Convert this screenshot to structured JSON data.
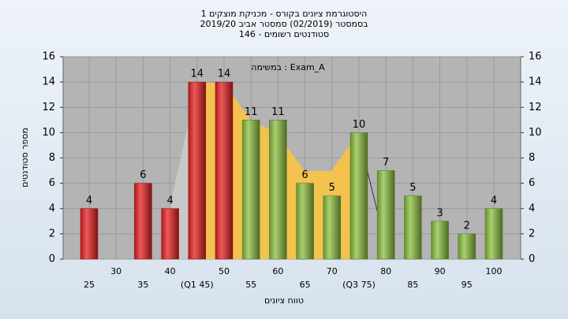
{
  "chart_data": {
    "type": "bar",
    "title_lines": [
      "היסטוגרמת ציונים בקורס - מכניקת מוצקים 1",
      "בסמסטר  (02/2019)  סמסטר אביב 2019/20",
      "סטודנטים רשומים - 146"
    ],
    "annotation": "במשימה : Exam_A",
    "x_label": "טווח ציונים",
    "y_label": "מספר סטודנטים",
    "categories": [
      "25",
      "30",
      "35",
      "40",
      "(Q1 45)",
      "50",
      "55",
      "60",
      "65",
      "70",
      "(Q3 75)",
      "80",
      "85",
      "90",
      "95",
      "100"
    ],
    "values": [
      4,
      null,
      6,
      4,
      14,
      14,
      11,
      11,
      6,
      5,
      10,
      7,
      5,
      3,
      2,
      4
    ],
    "colors": [
      "#e82020",
      null,
      "#e82020",
      "#e82020",
      "#e82020",
      "#e82020",
      "#8cc040",
      "#8cc040",
      "#8cc040",
      "#8cc040",
      "#8cc040",
      "#8cc040",
      "#8cc040",
      "#8cc040",
      "#8cc040",
      "#8cc040"
    ],
    "ylim": [
      0,
      16
    ],
    "yticks": [
      0,
      2,
      4,
      6,
      8,
      10,
      12,
      14,
      16
    ],
    "grid": true
  }
}
